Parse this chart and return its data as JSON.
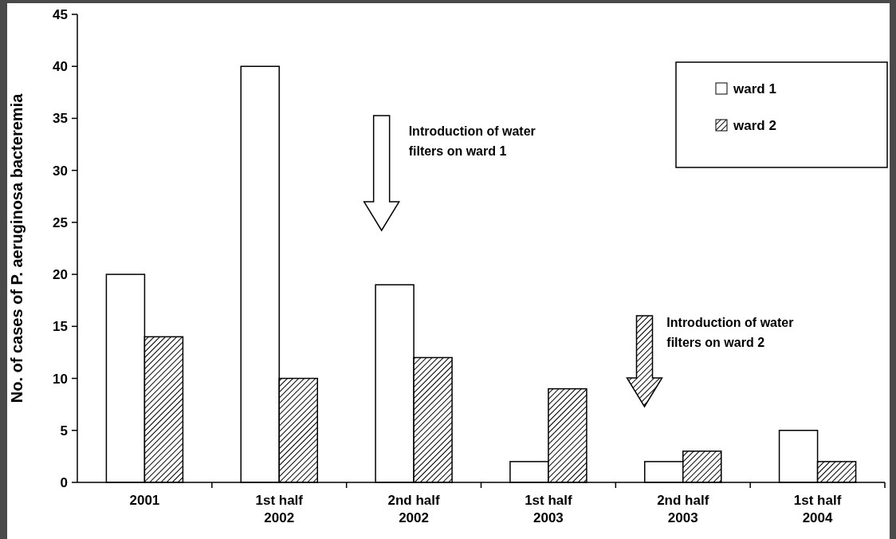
{
  "chart_data": {
    "type": "bar",
    "ylabel": "No. of cases of P. aeruginosa bacteremia",
    "categories": [
      "2001",
      "1st half 2002",
      "2nd half 2002",
      "1st half 2003",
      "2nd half 2003",
      "1st half 2004"
    ],
    "series": [
      {
        "name": "ward 1",
        "color": "#ffffff",
        "values": [
          20,
          40,
          19,
          2,
          2,
          5
        ]
      },
      {
        "name": "ward 2",
        "color": "#000000",
        "values": [
          14,
          10,
          12,
          9,
          3,
          2
        ]
      }
    ],
    "ylim": [
      0,
      45
    ],
    "yticks": [
      0,
      5,
      10,
      15,
      20,
      25,
      30,
      35,
      40,
      45
    ],
    "grid": false,
    "legend": "top right",
    "annotations": [
      "Introduction of water filters on ward 1",
      "Introduction of water filters on ward 2"
    ]
  }
}
